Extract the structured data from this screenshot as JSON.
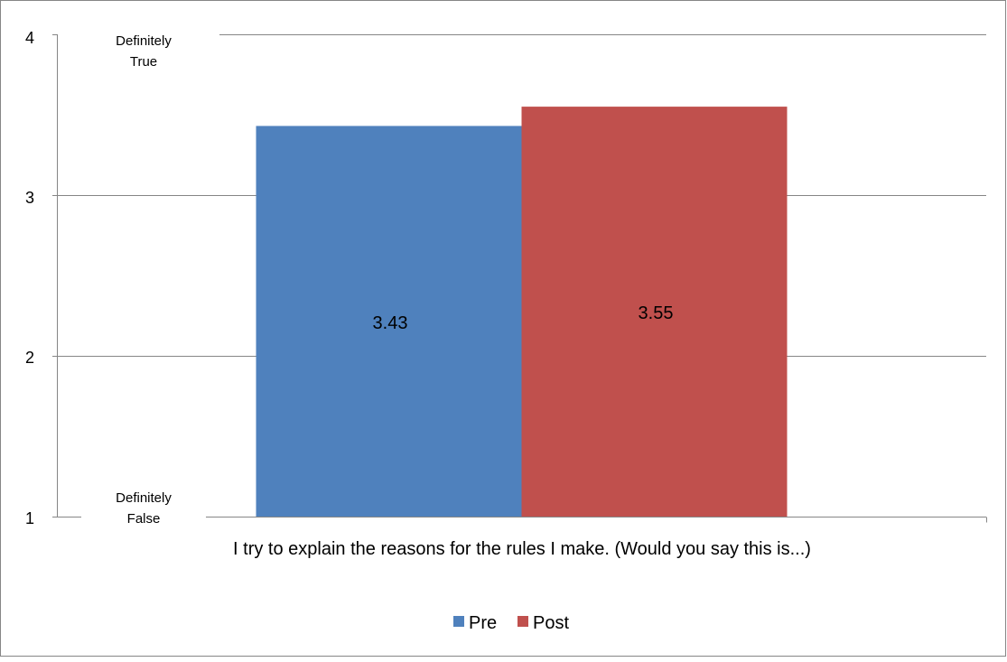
{
  "chart_data": {
    "type": "bar",
    "categories": [
      "I try to explain the reasons for the rules I make. (Would you say this is...)"
    ],
    "series": [
      {
        "name": "Pre",
        "values": [
          3.43
        ],
        "color": "#4F81BD",
        "label": "3.43"
      },
      {
        "name": "Post",
        "values": [
          3.55
        ],
        "color": "#C0504D",
        "label": "3.55"
      }
    ],
    "ylim": [
      1,
      4
    ],
    "y_ticks": [
      "1",
      "2",
      "3",
      "4"
    ],
    "y_tick_values": [
      1,
      2,
      3,
      4
    ],
    "scale_top_label": [
      "Definitely",
      "True"
    ],
    "scale_bottom_label": [
      "Definitely",
      "False"
    ],
    "grid": true,
    "legend_position": "bottom-center",
    "colors": {
      "grid": "#868686",
      "border": "#868686"
    }
  }
}
